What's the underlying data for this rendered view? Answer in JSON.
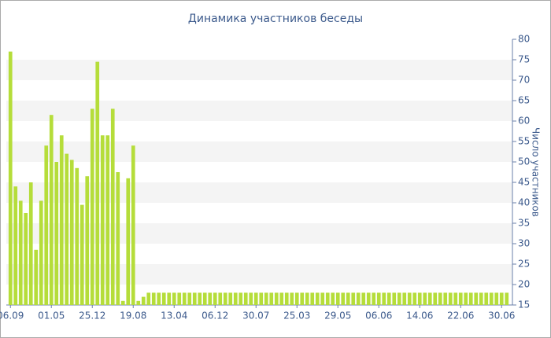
{
  "chart_data": {
    "type": "bar",
    "title": "Динамика участников беседы",
    "y_axis_label": "Число участников",
    "categories": [
      "06.09",
      null,
      null,
      null,
      null,
      null,
      null,
      null,
      "01.05",
      null,
      null,
      null,
      null,
      null,
      null,
      null,
      "25.12",
      null,
      null,
      null,
      null,
      null,
      null,
      null,
      "19.08",
      null,
      null,
      null,
      null,
      null,
      null,
      null,
      "13.04",
      null,
      null,
      null,
      null,
      null,
      null,
      null,
      "06.12",
      null,
      null,
      null,
      null,
      null,
      null,
      null,
      "30.07",
      null,
      null,
      null,
      null,
      null,
      null,
      null,
      "25.03",
      null,
      null,
      null,
      null,
      null,
      null,
      null,
      "29.05",
      null,
      null,
      null,
      null,
      null,
      null,
      null,
      "06.06",
      null,
      null,
      null,
      null,
      null,
      null,
      null,
      "14.06",
      null,
      null,
      null,
      null,
      null,
      null,
      null,
      "22.06",
      null,
      null,
      null,
      null,
      null,
      null,
      null,
      "30.06",
      null
    ],
    "values": [
      77,
      44,
      40.5,
      37.5,
      45,
      28.5,
      40.5,
      54,
      61.5,
      50,
      56.5,
      52,
      50.5,
      48.5,
      39.5,
      46.5,
      63,
      74.5,
      56.5,
      56.5,
      63,
      47.5,
      16,
      46,
      54,
      16,
      17,
      18,
      18,
      18,
      18,
      18,
      18,
      18,
      18,
      18,
      18,
      18,
      18,
      18,
      18,
      18,
      18,
      18,
      18,
      18,
      18,
      18,
      18,
      18,
      18,
      18,
      18,
      18,
      18,
      18,
      18,
      18,
      18,
      18,
      18,
      18,
      18,
      18,
      18,
      18,
      18,
      18,
      18,
      18,
      18,
      18,
      18,
      18,
      18,
      18,
      18,
      18,
      18,
      18,
      18,
      18,
      18,
      18,
      18,
      18,
      18,
      18,
      18,
      18,
      18,
      18,
      18,
      18,
      18,
      18,
      18,
      18
    ],
    "color": "#b5dd3a",
    "ylim": [
      15,
      80
    ],
    "yticks": [
      15,
      20,
      25,
      30,
      35,
      40,
      45,
      50,
      55,
      60,
      65,
      70,
      75,
      80
    ],
    "grid": true
  }
}
